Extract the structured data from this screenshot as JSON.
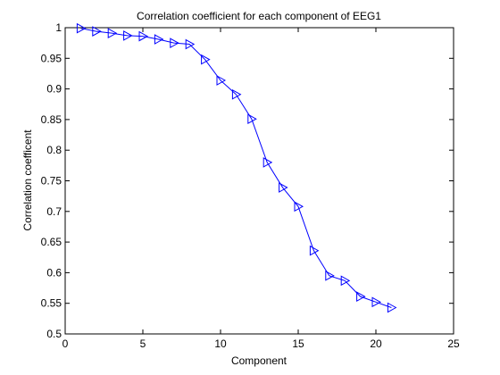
{
  "chart_data": {
    "type": "line",
    "title": "Correlation coefficient for each component of EEG1",
    "xlabel": "Component",
    "ylabel": "Correlation coefficent",
    "xlim": [
      0,
      25
    ],
    "ylim": [
      0.5,
      1
    ],
    "xticks": [
      "0",
      "5",
      "10",
      "15",
      "20",
      "25"
    ],
    "yticks": [
      "0.5",
      "0.55",
      "0.6",
      "0.65",
      "0.7",
      "0.75",
      "0.8",
      "0.85",
      "0.9",
      "0.95",
      "1"
    ],
    "grid": false,
    "legend": false,
    "series": [
      {
        "color": "#0000ff",
        "marker": "triangle-right",
        "x": [
          1,
          2,
          3,
          4,
          5,
          6,
          7,
          8,
          9,
          10,
          11,
          12,
          13,
          14,
          15,
          16,
          17,
          18,
          19,
          20,
          21
        ],
        "y": [
          0.999,
          0.994,
          0.991,
          0.987,
          0.986,
          0.981,
          0.975,
          0.973,
          0.948,
          0.914,
          0.891,
          0.851,
          0.78,
          0.739,
          0.708,
          0.636,
          0.595,
          0.587,
          0.561,
          0.552,
          0.543
        ]
      }
    ]
  }
}
